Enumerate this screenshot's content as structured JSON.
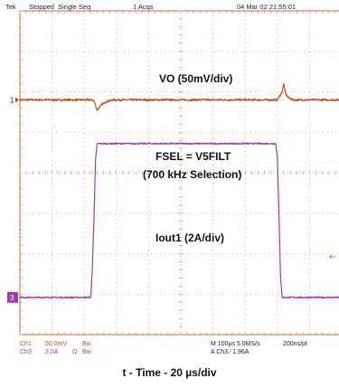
{
  "header": {
    "brand": "Tek",
    "status": "Stopped",
    "mode": "Single Seq",
    "acqs": "1 Acqs",
    "datetime": "04 Mar 02 21:55:01"
  },
  "colors": {
    "vo": "#c0501c",
    "iout": "#a23aa8",
    "grid": "#e29a6a",
    "frame": "#cf6a33"
  },
  "annotations": {
    "vo": "VO (50mV/div)",
    "fsel": "FSEL = V5FILT",
    "selection": "(700 kHz Selection)",
    "iout": "Iout1 (2A/div)"
  },
  "footer": {
    "ch1_label": "Ch1",
    "ch1_scale": "50.0mV",
    "ch1_bw": "Bw",
    "ch3_label": "Ch3",
    "ch3_scale": "2.0A",
    "ch3_ohm": "Ω",
    "ch3_bw": "Bw",
    "timebase": "M 100µs 5.0MS/s",
    "sample": "200ns/pt",
    "trigger": "A  Ch3  ∕  1.96A"
  },
  "caption": "t - Time - 20 µs/div",
  "chart_data": {
    "type": "line",
    "x_unit": "µs",
    "xlim": [
      0,
      200
    ],
    "ylim": [
      -4,
      4
    ],
    "divisions": {
      "x": 10,
      "y": 8
    },
    "markers": {
      "ch1_level": "1",
      "ch3_level": "3",
      "trigger_level": "←"
    },
    "series": [
      {
        "name": "VO (50mV/div)",
        "unit": "div",
        "x": [
          0,
          44,
          46,
          48,
          50,
          53,
          58,
          160,
          163,
          164,
          165,
          167,
          170,
          200
        ],
        "y": [
          1.8,
          1.8,
          1.78,
          1.55,
          1.65,
          1.75,
          1.8,
          1.8,
          2.0,
          2.2,
          1.95,
          1.85,
          1.8,
          1.8
        ]
      },
      {
        "name": "Iout1 (2A/div)",
        "unit": "div",
        "x": [
          0,
          44,
          45,
          46,
          47,
          48,
          159,
          160,
          161,
          162,
          163,
          200
        ],
        "y": [
          -3.08,
          -3.08,
          -2.4,
          -1.2,
          0.3,
          0.72,
          0.72,
          0.4,
          -1.0,
          -2.6,
          -3.08,
          -3.08
        ]
      }
    ]
  }
}
